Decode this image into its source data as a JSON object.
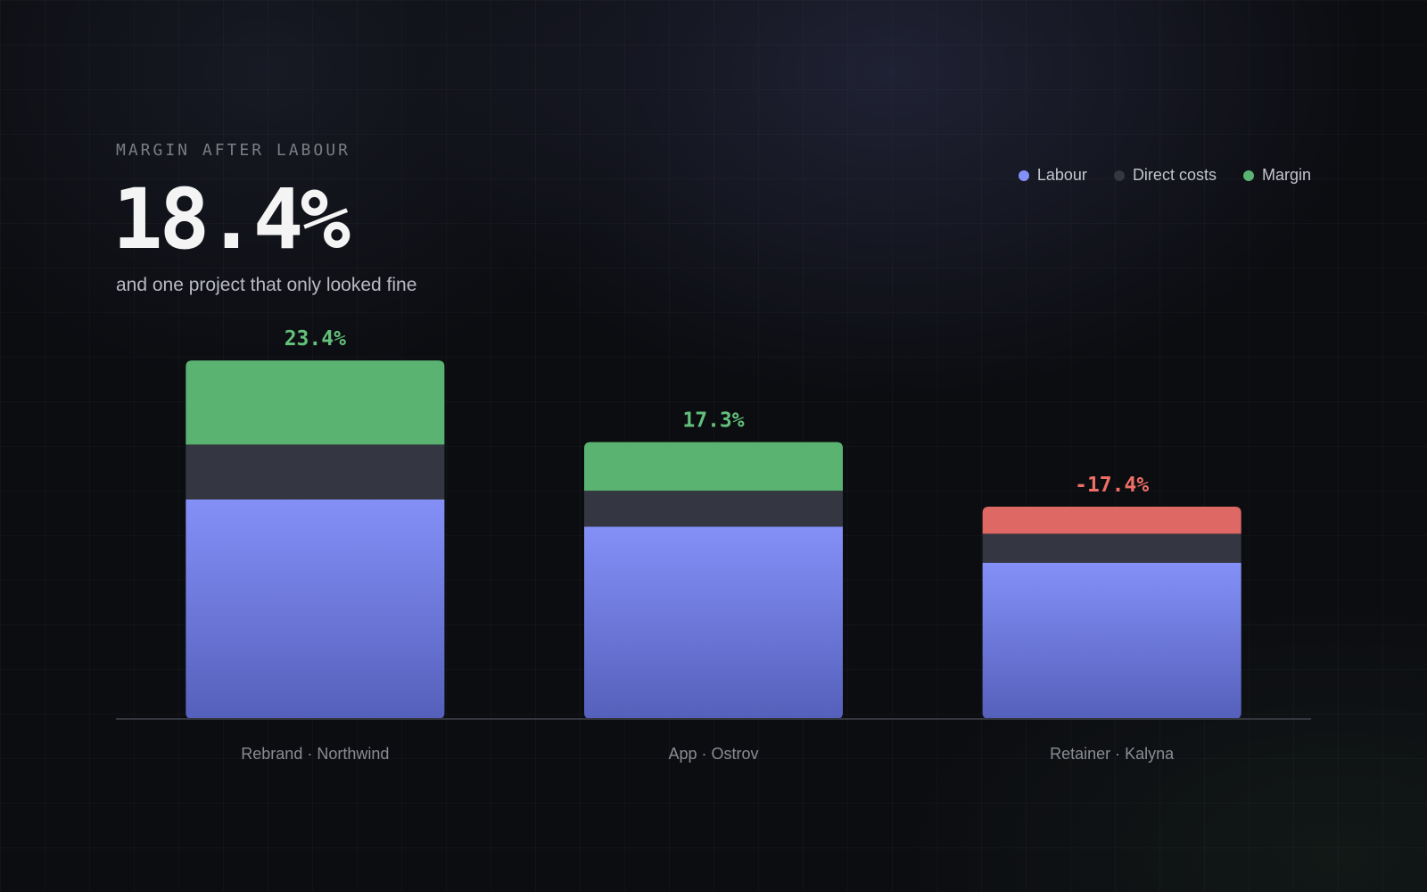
{
  "header": {
    "eyebrow": "MARGIN AFTER LABOUR",
    "headline": "18.4%",
    "subtitle": "and one project that only looked fine"
  },
  "colors": {
    "labour": "#8490f7",
    "labour_dark": "#5560bb",
    "direct_costs": "#343741",
    "margin_positive": "#5bb372",
    "margin_negative": "#de6863",
    "label_positive": "#63c07a",
    "label_negative": "#ef6e66",
    "baseline": "#34363e"
  },
  "chart_data": {
    "type": "bar",
    "stacked": true,
    "categories": [
      "Rebrand · Northwind",
      "App · Ostrov",
      "Retainer · Kalyna"
    ],
    "series": [
      {
        "name": "Labour",
        "color_key": "labour",
        "values": [
          55.1,
          48.3,
          39.2
        ]
      },
      {
        "name": "Direct costs",
        "color_key": "direct_costs",
        "values": [
          13.8,
          9.0,
          7.3
        ]
      },
      {
        "name": "Margin",
        "color_key": "margin",
        "values": [
          21.1,
          12.2,
          6.8
        ]
      }
    ],
    "value_labels": [
      "23.4%",
      "17.3%",
      "-17.4%"
    ],
    "value_signs": [
      "positive",
      "positive",
      "negative"
    ],
    "ylim": [
      0,
      100
    ],
    "grid": false,
    "legend_position": "top-right"
  }
}
